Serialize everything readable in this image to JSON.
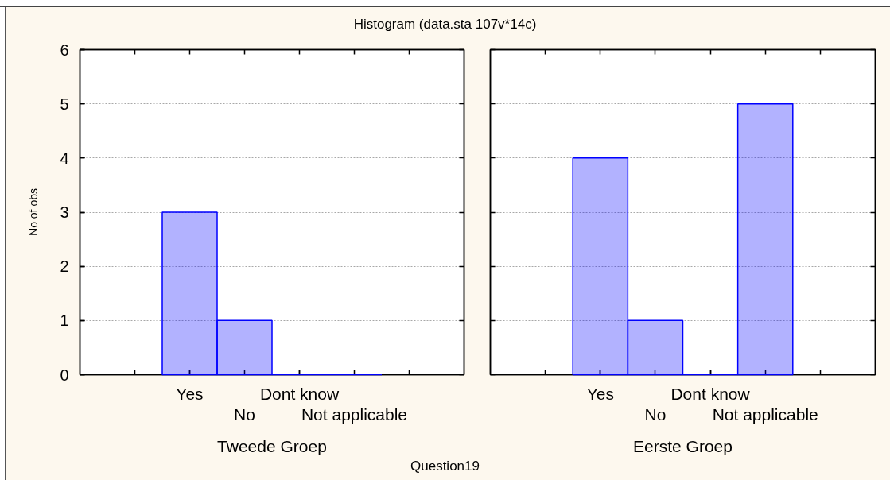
{
  "chart_data": [
    {
      "type": "bar",
      "title": "Histogram (data.sta 107v*14c)",
      "xlabel": "Tweede Groep",
      "ylabel": "No of obs",
      "annotations": [
        "Question19"
      ],
      "categories": [
        null,
        "Yes",
        "No",
        "Dont know",
        "Not applicable",
        null
      ],
      "values": [
        null,
        3,
        1,
        0,
        0,
        null
      ],
      "color": "#0000ff",
      "ylim": [
        0,
        6
      ],
      "yticks": [
        0,
        1,
        2,
        3,
        4,
        5,
        6
      ],
      "grid": "y"
    },
    {
      "type": "bar",
      "xlabel": "Eerste Groep",
      "categories": [
        null,
        "Yes",
        "No",
        "Dont know",
        "Not applicable",
        null
      ],
      "values": [
        null,
        4,
        1,
        0,
        5,
        null
      ],
      "color": "#0000ff",
      "ylim": [
        0,
        6
      ],
      "yticks": [
        0,
        1,
        2,
        3,
        4,
        5,
        6
      ],
      "grid": "y",
      "tick_labels": "x"
    }
  ]
}
